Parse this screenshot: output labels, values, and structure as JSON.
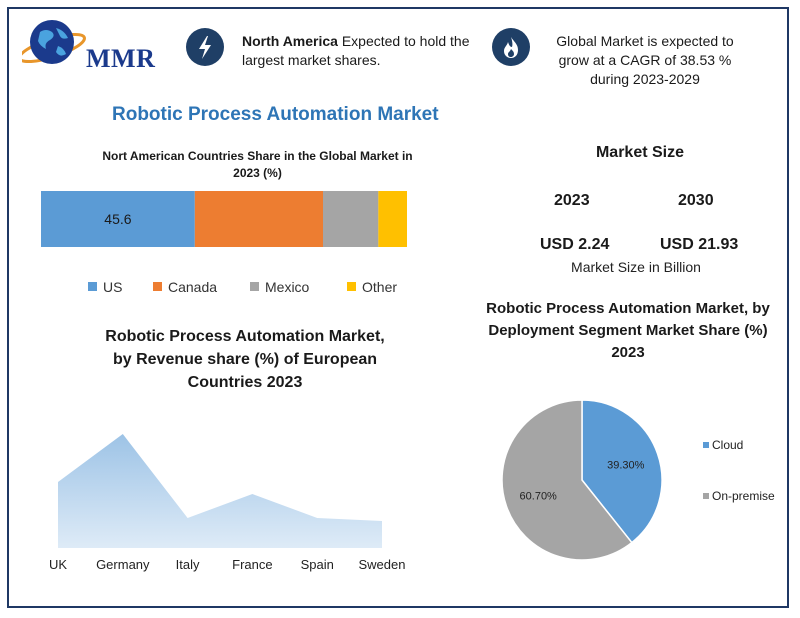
{
  "logo": {
    "text": "MMR",
    "icon": "globe-icon"
  },
  "highlights": [
    {
      "icon": "lightning-icon",
      "bold": "North America",
      "text": " Expected to hold the largest market shares."
    },
    {
      "icon": "flame-icon",
      "text": "Global Market is expected to grow at a CAGR of 38.53 % during 2023-2029"
    }
  ],
  "title": "Robotic Process Automation Market",
  "market_size": {
    "title": "Market Size",
    "years": [
      "2023",
      "2030"
    ],
    "values": [
      "USD 2.24",
      "USD 21.93"
    ],
    "note": "Market Size in Billion"
  },
  "colors": {
    "us": "#5b9bd5",
    "canada": "#ed7d31",
    "mexico": "#a5a5a5",
    "other": "#ffc000",
    "area": "#9dc3e6",
    "pie_cloud": "#5b9bd5",
    "pie_onprem": "#a5a5a5",
    "accent": "#2e75b6"
  },
  "chart_data": [
    {
      "type": "bar",
      "orientation": "horizontal-stacked",
      "title": "Nort American Countries Share in the Global Market in 2023  (%)",
      "categories": [
        "US",
        "Canada",
        "Mexico",
        "Other"
      ],
      "values": [
        45.6,
        38.0,
        16.4,
        8.5
      ],
      "data_labels": [
        "45.6",
        "",
        "",
        ""
      ],
      "legend": "bottom"
    },
    {
      "type": "area",
      "title": "Robotic Process Automation Market, by Revenue share (%) of European Countries 2023",
      "categories": [
        "UK",
        "Germany",
        "Italy",
        "France",
        "Spain",
        "Sweden"
      ],
      "values": [
        22,
        38,
        10,
        18,
        10,
        9
      ],
      "ylim": [
        0,
        40
      ],
      "grid": false
    },
    {
      "type": "pie",
      "title": "Robotic Process Automation Market, by Deployment Segment Market Share (%) 2023",
      "categories": [
        "Cloud",
        "On-premise"
      ],
      "values": [
        39.3,
        60.7
      ],
      "data_labels": [
        "39.30%",
        "60.70%"
      ],
      "legend": "right"
    }
  ]
}
